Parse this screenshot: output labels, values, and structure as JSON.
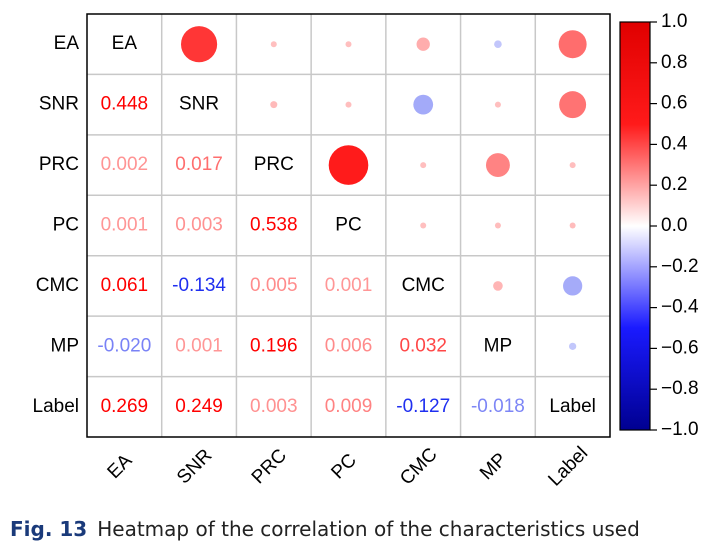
{
  "chart_data": {
    "type": "correlation",
    "categories": [
      "EA",
      "SNR",
      "PRC",
      "PC",
      "CMC",
      "MP",
      "Label"
    ],
    "values": [
      [
        null,
        null,
        null,
        null,
        null,
        null,
        null
      ],
      [
        0.448,
        null,
        null,
        null,
        null,
        null,
        null
      ],
      [
        0.002,
        0.017,
        null,
        null,
        null,
        null,
        null
      ],
      [
        0.001,
        0.003,
        0.538,
        null,
        null,
        null,
        null
      ],
      [
        0.061,
        -0.134,
        0.005,
        0.001,
        null,
        null,
        null
      ],
      [
        -0.02,
        0.001,
        0.196,
        0.006,
        0.032,
        null,
        null
      ],
      [
        0.269,
        0.249,
        0.003,
        0.009,
        -0.127,
        -0.018,
        null
      ]
    ],
    "value_labels": [
      [
        null,
        null,
        null,
        null,
        null,
        null,
        null
      ],
      [
        null,
        null,
        null,
        null,
        null,
        null,
        null
      ],
      [
        null,
        null,
        null,
        null,
        null,
        null,
        null
      ],
      [
        null,
        null,
        null,
        null,
        null,
        null,
        null
      ],
      [
        null,
        null,
        null,
        null,
        null,
        null,
        null
      ],
      [
        "-0.020",
        null,
        null,
        null,
        null,
        null,
        null
      ],
      [
        null,
        null,
        null,
        null,
        null,
        null,
        null
      ]
    ],
    "positive_color": "#ff0000",
    "negative_color": "#1f2ff0",
    "colorbar": {
      "lim": [
        -1,
        1
      ],
      "colors": [
        "#000090",
        "#1a1aff",
        "#ffffff",
        "#ff1a1a",
        "#e00000"
      ],
      "ticks": [
        {
          "value": 1,
          "label": "1.0"
        },
        0.8,
        0.6,
        0.4,
        0.2,
        {
          "value": 0,
          "label": "0.0"
        },
        {
          "value": -0.2,
          "label": "−0.2"
        },
        {
          "value": -0.4,
          "label": "−0.4"
        },
        {
          "value": -0.6,
          "label": "−0.6"
        },
        {
          "value": -0.8,
          "label": "−0.8"
        },
        {
          "value": -1,
          "label": "−1.0"
        }
      ]
    }
  },
  "caption": {
    "label": "Fig. 13",
    "text": "Heatmap of the correlation of the characteristics used"
  }
}
